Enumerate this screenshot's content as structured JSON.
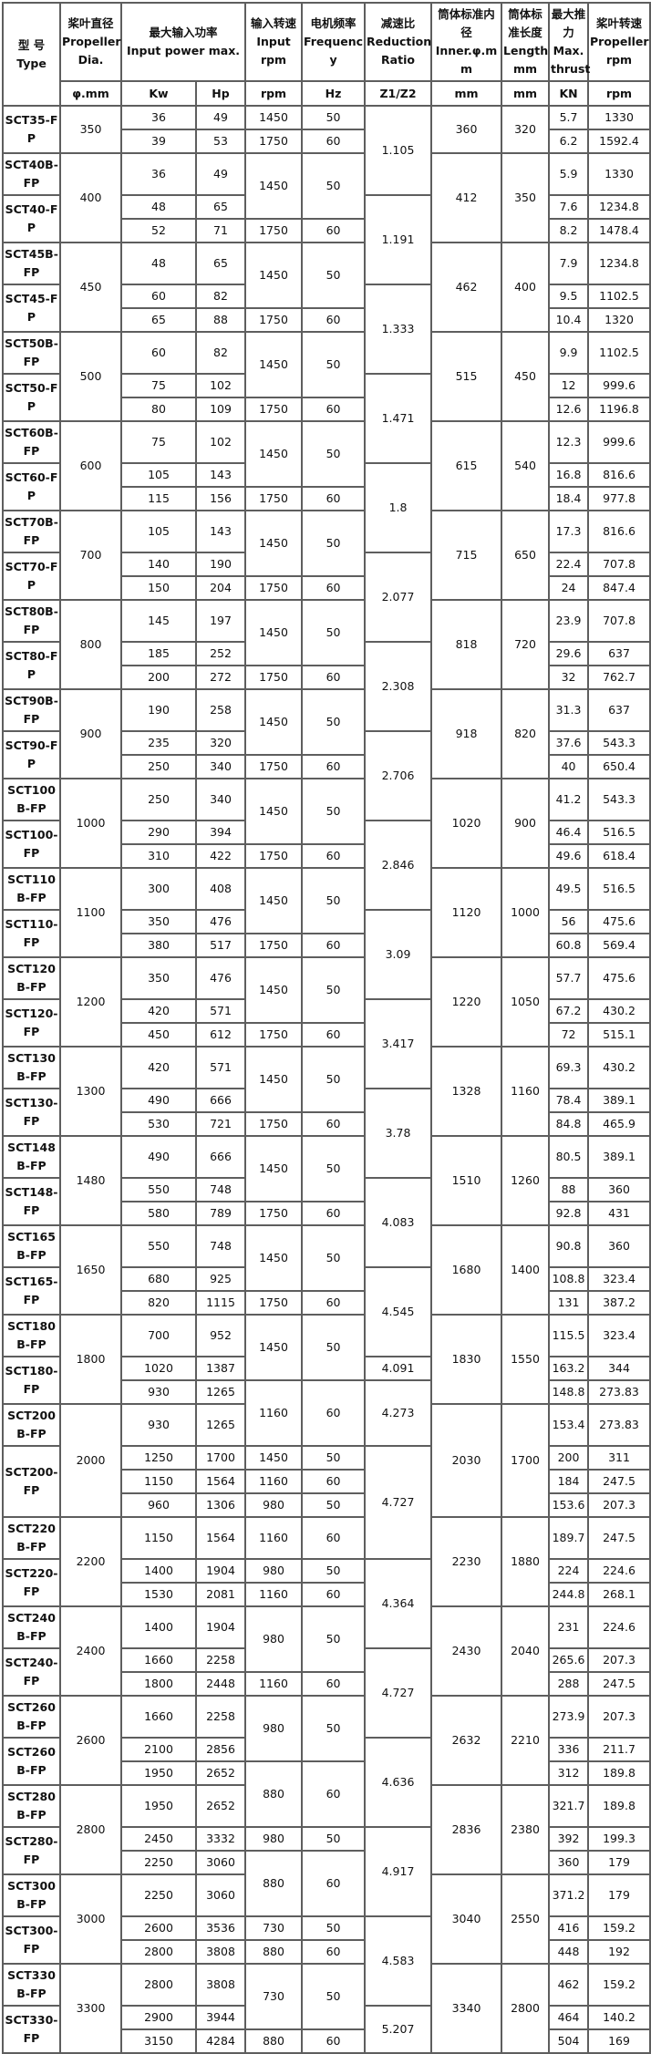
{
  "header": {
    "type": {
      "cn": "型 号",
      "en": "Type"
    },
    "dia": {
      "cn": "桨叶直径",
      "en": "Propeller Dia.",
      "unit": "φ.mm"
    },
    "power": {
      "cn": "最大输入功率",
      "en": "Input power max.",
      "unit_kw": "Kw",
      "unit_hp": "Hp"
    },
    "rpm": {
      "cn": "输入转速",
      "en": "Input rpm",
      "unit": "rpm"
    },
    "freq": {
      "cn": "电机频率",
      "en": "Frequency",
      "unit": "Hz"
    },
    "ratio": {
      "cn": "减速比",
      "en": "Reduction Ratio",
      "unit": "Z1/Z2"
    },
    "inner": {
      "cn": "筒体标准内径",
      "en": "Inner.φ.mm",
      "unit": "mm"
    },
    "length": {
      "cn": "筒体标准长度",
      "en": "Length mm",
      "unit": "mm"
    },
    "thrust": {
      "cn": "最大推力",
      "en": "Max. thrust",
      "unit": "KN"
    },
    "prop_rpm": {
      "cn": "桨叶转速",
      "en": "Propeller rpm",
      "unit": "rpm"
    }
  },
  "table": {
    "columns": [
      "model",
      "dia",
      "kw",
      "hp",
      "rpm",
      "hz",
      "ratio",
      "inner",
      "length",
      "thrust",
      "prop_rpm"
    ],
    "rows": [
      [
        "SCT35-FP",
        "350",
        "36",
        "49",
        "1450",
        "50",
        "1.105",
        "360",
        "320",
        "5.7",
        "1330"
      ],
      [
        null,
        null,
        "39",
        "53",
        "1750",
        "60",
        null,
        null,
        null,
        "6.2",
        "1592.4"
      ],
      [
        "SCT40B-FP",
        "400",
        "36",
        "49",
        "1450",
        "50",
        null,
        "412",
        "350",
        "5.9",
        "1330"
      ],
      [
        "SCT40-FP",
        null,
        "48",
        "65",
        null,
        null,
        "1.191",
        null,
        null,
        "7.6",
        "1234.8"
      ],
      [
        null,
        null,
        "52",
        "71",
        "1750",
        "60",
        null,
        null,
        null,
        "8.2",
        "1478.4"
      ],
      [
        "SCT45B-FP",
        "450",
        "48",
        "65",
        "1450",
        "50",
        null,
        "462",
        "400",
        "7.9",
        "1234.8"
      ],
      [
        "SCT45-FP",
        null,
        "60",
        "82",
        null,
        null,
        "1.333",
        null,
        null,
        "9.5",
        "1102.5"
      ],
      [
        null,
        null,
        "65",
        "88",
        "1750",
        "60",
        null,
        null,
        null,
        "10.4",
        "1320"
      ],
      [
        "SCT50B-FP",
        "500",
        "60",
        "82",
        "1450",
        "50",
        null,
        "515",
        "450",
        "9.9",
        "1102.5"
      ],
      [
        "SCT50-FP",
        null,
        "75",
        "102",
        null,
        null,
        "1.471",
        null,
        null,
        "12",
        "999.6"
      ],
      [
        null,
        null,
        "80",
        "109",
        "1750",
        "60",
        null,
        null,
        null,
        "12.6",
        "1196.8"
      ],
      [
        "SCT60B-FP",
        "600",
        "75",
        "102",
        "1450",
        "50",
        null,
        "615",
        "540",
        "12.3",
        "999.6"
      ],
      [
        "SCT60-FP",
        null,
        "105",
        "143",
        null,
        null,
        "1.8",
        null,
        null,
        "16.8",
        "816.6"
      ],
      [
        null,
        null,
        "115",
        "156",
        "1750",
        "60",
        null,
        null,
        null,
        "18.4",
        "977.8"
      ],
      [
        "SCT70B-FP",
        "700",
        "105",
        "143",
        "1450",
        "50",
        null,
        "715",
        "650",
        "17.3",
        "816.6"
      ],
      [
        "SCT70-FP",
        null,
        "140",
        "190",
        null,
        null,
        "2.077",
        null,
        null,
        "22.4",
        "707.8"
      ],
      [
        null,
        null,
        "150",
        "204",
        "1750",
        "60",
        null,
        null,
        null,
        "24",
        "847.4"
      ],
      [
        "SCT80B-FP",
        "800",
        "145",
        "197",
        "1450",
        "50",
        null,
        "818",
        "720",
        "23.9",
        "707.8"
      ],
      [
        "SCT80-FP",
        null,
        "185",
        "252",
        null,
        null,
        "2.308",
        null,
        null,
        "29.6",
        "637"
      ],
      [
        null,
        null,
        "200",
        "272",
        "1750",
        "60",
        null,
        null,
        null,
        "32",
        "762.7"
      ],
      [
        "SCT90B-FP",
        "900",
        "190",
        "258",
        "1450",
        "50",
        null,
        "918",
        "820",
        "31.3",
        "637"
      ],
      [
        "SCT90-FP",
        null,
        "235",
        "320",
        null,
        null,
        "2.706",
        null,
        null,
        "37.6",
        "543.3"
      ],
      [
        null,
        null,
        "250",
        "340",
        "1750",
        "60",
        null,
        null,
        null,
        "40",
        "650.4"
      ],
      [
        "SCT100B-FP",
        "1000",
        "250",
        "340",
        "1450",
        "50",
        null,
        "1020",
        "900",
        "41.2",
        "543.3"
      ],
      [
        "SCT100-FP",
        null,
        "290",
        "394",
        null,
        null,
        "2.846",
        null,
        null,
        "46.4",
        "516.5"
      ],
      [
        null,
        null,
        "310",
        "422",
        "1750",
        "60",
        null,
        null,
        null,
        "49.6",
        "618.4"
      ],
      [
        "SCT110B-FP",
        "1100",
        "300",
        "408",
        "1450",
        "50",
        null,
        "1120",
        "1000",
        "49.5",
        "516.5"
      ],
      [
        "SCT110-FP",
        null,
        "350",
        "476",
        null,
        null,
        "3.09",
        null,
        null,
        "56",
        "475.6"
      ],
      [
        null,
        null,
        "380",
        "517",
        "1750",
        "60",
        null,
        null,
        null,
        "60.8",
        "569.4"
      ],
      [
        "SCT120B-FP",
        "1200",
        "350",
        "476",
        "1450",
        "50",
        null,
        "1220",
        "1050",
        "57.7",
        "475.6"
      ],
      [
        "SCT120-FP",
        null,
        "420",
        "571",
        null,
        null,
        "3.417",
        null,
        null,
        "67.2",
        "430.2"
      ],
      [
        null,
        null,
        "450",
        "612",
        "1750",
        "60",
        null,
        null,
        null,
        "72",
        "515.1"
      ],
      [
        "SCT130B-FP",
        "1300",
        "420",
        "571",
        "1450",
        "50",
        null,
        "1328",
        "1160",
        "69.3",
        "430.2"
      ],
      [
        "SCT130-FP",
        null,
        "490",
        "666",
        null,
        null,
        "3.78",
        null,
        null,
        "78.4",
        "389.1"
      ],
      [
        null,
        null,
        "530",
        "721",
        "1750",
        "60",
        null,
        null,
        null,
        "84.8",
        "465.9"
      ],
      [
        "SCT148B-FP",
        "1480",
        "490",
        "666",
        "1450",
        "50",
        null,
        "1510",
        "1260",
        "80.5",
        "389.1"
      ],
      [
        "SCT148-FP",
        null,
        "550",
        "748",
        null,
        null,
        "4.083",
        null,
        null,
        "88",
        "360"
      ],
      [
        null,
        null,
        "580",
        "789",
        "1750",
        "60",
        null,
        null,
        null,
        "92.8",
        "431"
      ],
      [
        "SCT165B-FP",
        "1650",
        "550",
        "748",
        "1450",
        "50",
        null,
        "1680",
        "1400",
        "90.8",
        "360"
      ],
      [
        "SCT165-FP",
        null,
        "680",
        "925",
        null,
        null,
        "4.545",
        null,
        null,
        "108.8",
        "323.4"
      ],
      [
        null,
        null,
        "820",
        "1115",
        "1750",
        "60",
        null,
        null,
        null,
        "131",
        "387.2"
      ],
      [
        "SCT180B-FP",
        "1800",
        "700",
        "952",
        "1450",
        "50",
        null,
        "1830",
        "1550",
        "115.5",
        "323.4"
      ],
      [
        "SCT180-FP",
        null,
        "1020",
        "1387",
        null,
        null,
        "4.091",
        null,
        null,
        "163.2",
        "344"
      ],
      [
        null,
        null,
        "930",
        "1265",
        "1160",
        "60",
        "4.273",
        null,
        null,
        "148.8",
        "273.83"
      ],
      [
        "SCT200B-FP",
        "2000",
        "930",
        "1265",
        null,
        null,
        null,
        "2030",
        "1700",
        "153.4",
        "273.83"
      ],
      [
        "SCT200-FP",
        null,
        "1250",
        "1700",
        "1450",
        "50",
        "4.727",
        null,
        null,
        "200",
        "311"
      ],
      [
        null,
        null,
        "1150",
        "1564",
        "1160",
        "60",
        null,
        null,
        null,
        "184",
        "247.5"
      ],
      [
        null,
        null,
        "960",
        "1306",
        "980",
        "50",
        null,
        null,
        null,
        "153.6",
        "207.3"
      ],
      [
        "SCT220B-FP",
        "2200",
        "1150",
        "1564",
        "1160",
        "60",
        null,
        "2230",
        "1880",
        "189.7",
        "247.5"
      ],
      [
        "SCT220-FP",
        null,
        "1400",
        "1904",
        "980",
        "50",
        "4.364",
        null,
        null,
        "224",
        "224.6"
      ],
      [
        null,
        null,
        "1530",
        "2081",
        "1160",
        "60",
        null,
        null,
        null,
        "244.8",
        "268.1"
      ],
      [
        "SCT240B-FP",
        "2400",
        "1400",
        "1904",
        "980",
        "50",
        null,
        "2430",
        "2040",
        "231",
        "224.6"
      ],
      [
        "SCT240-FP",
        null,
        "1660",
        "2258",
        null,
        null,
        "4.727",
        null,
        null,
        "265.6",
        "207.3"
      ],
      [
        null,
        null,
        "1800",
        "2448",
        "1160",
        "60",
        null,
        null,
        null,
        "288",
        "247.5"
      ],
      [
        "SCT260B-FP",
        "2600",
        "1660",
        "2258",
        "980",
        "50",
        null,
        "2632",
        "2210",
        "273.9",
        "207.3"
      ],
      [
        "SCT260B-FP",
        null,
        "2100",
        "2856",
        null,
        null,
        "4.636",
        null,
        null,
        "336",
        "211.7"
      ],
      [
        null,
        null,
        "1950",
        "2652",
        "880",
        "60",
        null,
        null,
        null,
        "312",
        "189.8"
      ],
      [
        "SCT280B-FP",
        "2800",
        "1950",
        "2652",
        null,
        null,
        null,
        "2836",
        "2380",
        "321.7",
        "189.8"
      ],
      [
        "SCT280-FP",
        null,
        "2450",
        "3332",
        "980",
        "50",
        "4.917",
        null,
        null,
        "392",
        "199.3"
      ],
      [
        null,
        null,
        "2250",
        "3060",
        "880",
        "60",
        null,
        null,
        null,
        "360",
        "179"
      ],
      [
        "SCT300B-FP",
        "3000",
        "2250",
        "3060",
        null,
        null,
        null,
        "3040",
        "2550",
        "371.2",
        "179"
      ],
      [
        "SCT300-FP",
        null,
        "2600",
        "3536",
        "730",
        "50",
        "4.583",
        null,
        null,
        "416",
        "159.2"
      ],
      [
        null,
        null,
        "2800",
        "3808",
        "880",
        "60",
        null,
        null,
        null,
        "448",
        "192"
      ],
      [
        "SCT330B-FP",
        "3300",
        "2800",
        "3808",
        "730",
        "50",
        null,
        "3340",
        "2800",
        "462",
        "159.2"
      ],
      [
        "SCT330-FP",
        null,
        "2900",
        "3944",
        null,
        null,
        "5.207",
        null,
        null,
        "464",
        "140.2"
      ],
      [
        null,
        null,
        "3150",
        "4284",
        "880",
        "60",
        null,
        null,
        null,
        "504",
        "169"
      ]
    ]
  }
}
